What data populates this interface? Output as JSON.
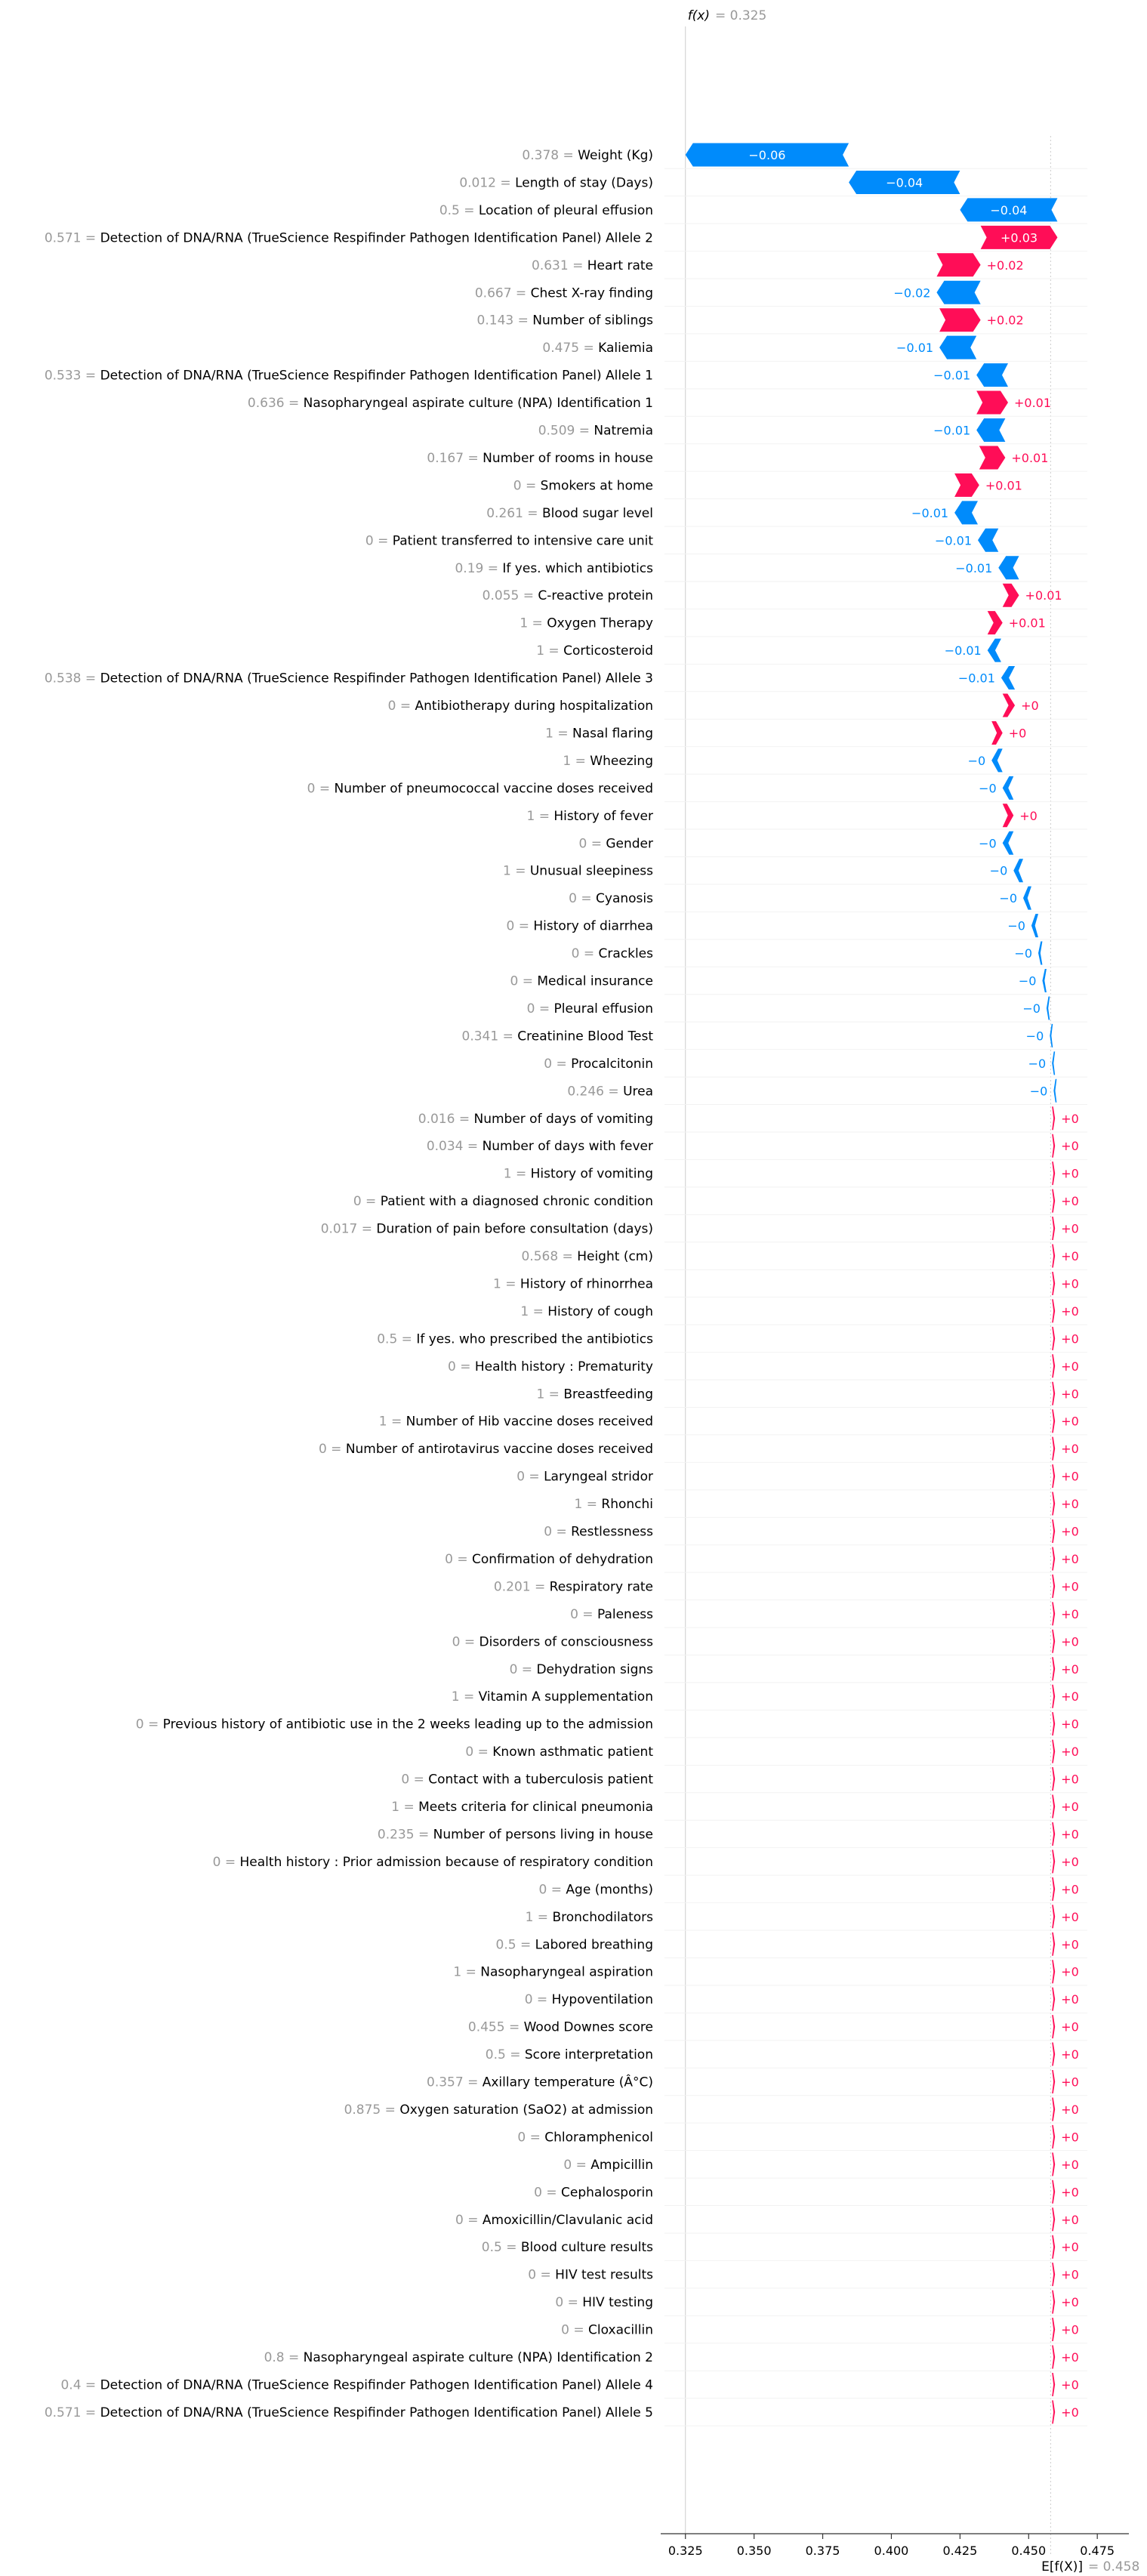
{
  "chart_data": {
    "type": "waterfall",
    "fx_label": "f(x)",
    "fx_value_text": "0.325",
    "ex_label": "E[f(X)]",
    "ex_value_text": "0.458",
    "fx": 0.325,
    "base_value": 0.458,
    "xlim": [
      0.316,
      0.4865
    ],
    "x_ticks": [
      0.325,
      0.35,
      0.375,
      0.4,
      0.425,
      0.45,
      0.475
    ],
    "x_tick_labels": [
      "0.325",
      "0.350",
      "0.375",
      "0.400",
      "0.425",
      "0.450",
      "0.475"
    ],
    "colors": {
      "positive": "#ff0d57",
      "negative": "#008bfb",
      "value_text": "#999999",
      "axis": "#333333",
      "gridline": "#cccccc"
    },
    "features": [
      {
        "value": "0.378",
        "name": "Weight (Kg)",
        "shap": -0.0595,
        "label": "−0.06"
      },
      {
        "value": "0.012",
        "name": "Length of stay (Days)",
        "shap": -0.0405,
        "label": "−0.04"
      },
      {
        "value": "0.5",
        "name": "Location of pleural effusion",
        "shap": -0.0355,
        "label": "−0.04"
      },
      {
        "value": "0.571",
        "name": "Detection of DNA/RNA (TrueScience Respifinder Pathogen Identification Panel) Allele 2",
        "shap": 0.028,
        "label": "+0.03"
      },
      {
        "value": "0.631",
        "name": "Heart rate",
        "shap": 0.016,
        "label": "+0.02"
      },
      {
        "value": "0.667",
        "name": "Chest X-ray finding",
        "shap": -0.016,
        "label": "−0.02"
      },
      {
        "value": "0.143",
        "name": "Number of siblings",
        "shap": 0.015,
        "label": "+0.02"
      },
      {
        "value": "0.475",
        "name": "Kaliemia",
        "shap": -0.0135,
        "label": "−0.01"
      },
      {
        "value": "0.533",
        "name": "Detection of DNA/RNA (TrueScience Respifinder Pathogen Identification Panel) Allele 1",
        "shap": -0.0115,
        "label": "−0.01"
      },
      {
        "value": "0.636",
        "name": "Nasopharyngeal aspirate culture (NPA) Identification 1",
        "shap": 0.0115,
        "label": "+0.01"
      },
      {
        "value": "0.509",
        "name": "Natremia",
        "shap": -0.0105,
        "label": "−0.01"
      },
      {
        "value": "0.167",
        "name": "Number of rooms in house",
        "shap": 0.0095,
        "label": "+0.01"
      },
      {
        "value": "0",
        "name": "Smokers at home",
        "shap": 0.009,
        "label": "+0.01"
      },
      {
        "value": "0.261",
        "name": "Blood sugar level",
        "shap": -0.0085,
        "label": "−0.01"
      },
      {
        "value": "0",
        "name": "Patient transferred to intensive care unit",
        "shap": -0.0075,
        "label": "−0.01"
      },
      {
        "value": "0.19",
        "name": "If yes. which antibiotics",
        "shap": -0.0075,
        "label": "−0.01"
      },
      {
        "value": "0.055",
        "name": "C-reactive protein",
        "shap": 0.006,
        "label": "+0.01"
      },
      {
        "value": "1",
        "name": "Oxygen Therapy",
        "shap": 0.0055,
        "label": "+0.01"
      },
      {
        "value": "1",
        "name": "Corticosteroid",
        "shap": -0.005,
        "label": "−0.01"
      },
      {
        "value": "0.538",
        "name": "Detection of DNA/RNA (TrueScience Respifinder Pathogen Identification Panel) Allele 3",
        "shap": -0.005,
        "label": "−0.01"
      },
      {
        "value": "0",
        "name": "Antibiotherapy during hospitalization",
        "shap": 0.0045,
        "label": "+0"
      },
      {
        "value": "1",
        "name": "Nasal flaring",
        "shap": 0.004,
        "label": "+0"
      },
      {
        "value": "1",
        "name": "Wheezing",
        "shap": -0.004,
        "label": "−0"
      },
      {
        "value": "0",
        "name": "Number of pneumococcal vaccine doses received",
        "shap": -0.004,
        "label": "−0"
      },
      {
        "value": "1",
        "name": "History of fever",
        "shap": 0.004,
        "label": "+0"
      },
      {
        "value": "0",
        "name": "Gender",
        "shap": -0.004,
        "label": "−0"
      },
      {
        "value": "1",
        "name": "Unusual sleepiness",
        "shap": -0.0035,
        "label": "−0"
      },
      {
        "value": "0",
        "name": "Cyanosis",
        "shap": -0.003,
        "label": "−0"
      },
      {
        "value": "0",
        "name": "History of diarrhea",
        "shap": -0.0025,
        "label": "−0"
      },
      {
        "value": "0",
        "name": "Crackles",
        "shap": -0.0015,
        "label": "−0"
      },
      {
        "value": "0",
        "name": "Medical insurance",
        "shap": -0.0015,
        "label": "−0"
      },
      {
        "value": "0",
        "name": "Pleural effusion",
        "shap": -0.0012,
        "label": "−0"
      },
      {
        "value": "0.341",
        "name": "Creatinine Blood Test",
        "shap": -0.0008,
        "label": "−0"
      },
      {
        "value": "0",
        "name": "Procalcitonin",
        "shap": -0.0006,
        "label": "−0"
      },
      {
        "value": "0.246",
        "name": "Urea",
        "shap": -0.0005,
        "label": "−0"
      },
      {
        "value": "0.016",
        "name": "Number of days of vomiting",
        "shap": 0.0,
        "label": "+0"
      },
      {
        "value": "0.034",
        "name": "Number of days with fever",
        "shap": 0.0,
        "label": "+0"
      },
      {
        "value": "1",
        "name": "History of vomiting",
        "shap": 0.0,
        "label": "+0"
      },
      {
        "value": "0",
        "name": "Patient with a diagnosed chronic condition",
        "shap": 0.0,
        "label": "+0"
      },
      {
        "value": "0.017",
        "name": "Duration of pain before consultation (days)",
        "shap": 0.0,
        "label": "+0"
      },
      {
        "value": "0.568",
        "name": "Height (cm)",
        "shap": 0.0,
        "label": "+0"
      },
      {
        "value": "1",
        "name": "History of rhinorrhea",
        "shap": 0.0,
        "label": "+0"
      },
      {
        "value": "1",
        "name": "History of cough",
        "shap": 0.0,
        "label": "+0"
      },
      {
        "value": "0.5",
        "name": "If yes. who prescribed the antibiotics",
        "shap": 0.0,
        "label": "+0"
      },
      {
        "value": "0",
        "name": "Health history : Prematurity",
        "shap": 0.0,
        "label": "+0"
      },
      {
        "value": "1",
        "name": "Breastfeeding",
        "shap": 0.0,
        "label": "+0"
      },
      {
        "value": "1",
        "name": "Number of Hib vaccine doses received",
        "shap": 0.0,
        "label": "+0"
      },
      {
        "value": "0",
        "name": "Number of antirotavirus vaccine doses received",
        "shap": 0.0,
        "label": "+0"
      },
      {
        "value": "0",
        "name": "Laryngeal stridor",
        "shap": 0.0,
        "label": "+0"
      },
      {
        "value": "1",
        "name": "Rhonchi",
        "shap": 0.0,
        "label": "+0"
      },
      {
        "value": "0",
        "name": "Restlessness",
        "shap": 0.0,
        "label": "+0"
      },
      {
        "value": "0",
        "name": "Confirmation of dehydration",
        "shap": 0.0,
        "label": "+0"
      },
      {
        "value": "0.201",
        "name": "Respiratory rate",
        "shap": 0.0,
        "label": "+0"
      },
      {
        "value": "0",
        "name": "Paleness",
        "shap": 0.0,
        "label": "+0"
      },
      {
        "value": "0",
        "name": "Disorders of consciousness",
        "shap": 0.0,
        "label": "+0"
      },
      {
        "value": "0",
        "name": "Dehydration signs",
        "shap": 0.0,
        "label": "+0"
      },
      {
        "value": "1",
        "name": "Vitamin A supplementation",
        "shap": 0.0,
        "label": "+0"
      },
      {
        "value": "0",
        "name": "Previous history of antibiotic use in the 2 weeks leading up to the admission",
        "shap": 0.0,
        "label": "+0"
      },
      {
        "value": "0",
        "name": "Known asthmatic patient",
        "shap": 0.0,
        "label": "+0"
      },
      {
        "value": "0",
        "name": "Contact with a tuberculosis patient",
        "shap": 0.0,
        "label": "+0"
      },
      {
        "value": "1",
        "name": "Meets criteria for clinical pneumonia",
        "shap": 0.0,
        "label": "+0"
      },
      {
        "value": "0.235",
        "name": "Number of persons living in house",
        "shap": 0.0,
        "label": "+0"
      },
      {
        "value": "0",
        "name": "Health history : Prior admission because of respiratory condition",
        "shap": 0.0,
        "label": "+0"
      },
      {
        "value": "0",
        "name": "Age (months)",
        "shap": 0.0,
        "label": "+0"
      },
      {
        "value": "1",
        "name": "Bronchodilators",
        "shap": 0.0,
        "label": "+0"
      },
      {
        "value": "0.5",
        "name": "Labored breathing",
        "shap": 0.0,
        "label": "+0"
      },
      {
        "value": "1",
        "name": "Nasopharyngeal aspiration",
        "shap": 0.0,
        "label": "+0"
      },
      {
        "value": "0",
        "name": "Hypoventilation",
        "shap": 0.0,
        "label": "+0"
      },
      {
        "value": "0.455",
        "name": "Wood Downes score",
        "shap": 0.0,
        "label": "+0"
      },
      {
        "value": "0.5",
        "name": "Score interpretation",
        "shap": 0.0,
        "label": "+0"
      },
      {
        "value": "0.357",
        "name": "Axillary temperature (Â°C)",
        "shap": 0.0,
        "label": "+0"
      },
      {
        "value": "0.875",
        "name": "Oxygen saturation (SaO2) at admission",
        "shap": 0.0,
        "label": "+0"
      },
      {
        "value": "0",
        "name": "Chloramphenicol",
        "shap": 0.0,
        "label": "+0"
      },
      {
        "value": "0",
        "name": "Ampicillin",
        "shap": 0.0,
        "label": "+0"
      },
      {
        "value": "0",
        "name": "Cephalosporin",
        "shap": 0.0,
        "label": "+0"
      },
      {
        "value": "0",
        "name": "Amoxicillin/Clavulanic acid",
        "shap": 0.0,
        "label": "+0"
      },
      {
        "value": "0.5",
        "name": "Blood culture results",
        "shap": 0.0,
        "label": "+0"
      },
      {
        "value": "0",
        "name": "HIV test results",
        "shap": 0.0,
        "label": "+0"
      },
      {
        "value": "0",
        "name": "HIV testing",
        "shap": 0.0,
        "label": "+0"
      },
      {
        "value": "0",
        "name": "Cloxacillin",
        "shap": 0.0,
        "label": "+0"
      },
      {
        "value": "0.8",
        "name": "Nasopharyngeal aspirate culture (NPA) Identification 2",
        "shap": 0.0,
        "label": "+0"
      },
      {
        "value": "0.4",
        "name": "Detection of DNA/RNA (TrueScience Respifinder Pathogen Identification Panel) Allele 4",
        "shap": 0.0,
        "label": "+0"
      },
      {
        "value": "0.571",
        "name": "Detection of DNA/RNA (TrueScience Respifinder Pathogen Identification Panel) Allele 5",
        "shap": 0.0,
        "label": "+0"
      }
    ]
  }
}
